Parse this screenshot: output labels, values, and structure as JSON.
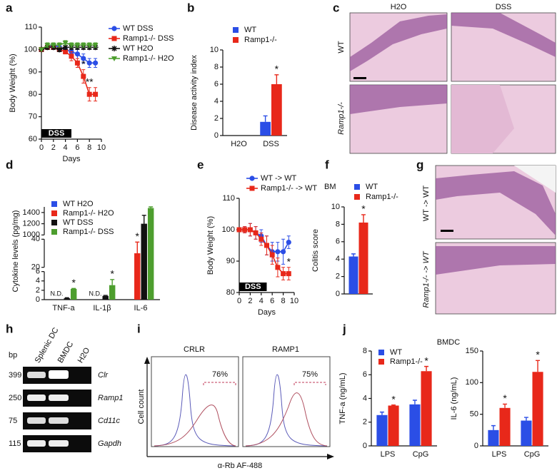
{
  "panels": [
    "a",
    "b",
    "c",
    "d",
    "e",
    "f",
    "g",
    "h",
    "i",
    "j"
  ],
  "chart_data": [
    {
      "type": "line",
      "ylabel": "Body Weight (%)",
      "xlabel": "Days",
      "x": [
        0,
        1,
        2,
        3,
        4,
        5,
        6,
        7,
        8,
        9
      ],
      "xlim": [
        0,
        10
      ],
      "xticks": [
        0,
        2,
        4,
        6,
        8,
        10
      ],
      "ylim": [
        60,
        110
      ],
      "yticks": [
        60,
        70,
        80,
        90,
        100,
        110
      ],
      "legend": "right",
      "dss_period": [
        0,
        5
      ],
      "dss_label": "DSS",
      "series": [
        {
          "name": "WT DSS",
          "color": "#2b4ee6",
          "marker": "circle",
          "values": [
            100,
            101,
            102,
            101,
            100,
            99,
            98,
            96,
            94,
            94
          ],
          "errors": [
            0,
            1,
            1,
            1,
            1,
            1,
            2,
            2,
            2,
            2
          ]
        },
        {
          "name": "Ramp1-/- DSS",
          "color": "#e8281a",
          "marker": "square",
          "values": [
            100,
            101,
            101,
            100,
            99,
            97,
            94,
            88,
            80,
            80
          ],
          "errors": [
            0,
            1,
            1,
            1,
            1,
            2,
            2,
            3,
            3,
            3
          ]
        },
        {
          "name": "WT H2O",
          "color": "#111111",
          "marker": "star",
          "values": [
            100,
            101,
            101,
            100,
            101,
            101,
            101,
            101,
            101,
            101
          ],
          "errors": [
            0,
            1,
            1,
            1,
            1,
            1,
            1,
            1,
            1,
            1
          ]
        },
        {
          "name": "Ramp1-/- H2O",
          "color": "#4d9e2e",
          "marker": "triangle",
          "values": [
            100,
            102,
            102,
            102,
            103,
            102,
            102,
            102,
            102,
            102
          ],
          "errors": [
            0,
            1,
            1,
            1,
            1,
            1,
            1,
            1,
            1,
            1
          ]
        }
      ],
      "annotations": [
        {
          "text": "*",
          "series": 1,
          "index": 7
        },
        {
          "text": "**",
          "series": 1,
          "index": 8
        }
      ]
    },
    {
      "type": "bar",
      "ylabel": "Disease activity index",
      "categories": [
        "H2O",
        "DSS"
      ],
      "ylim": [
        0,
        10
      ],
      "yticks": [
        0,
        2,
        4,
        6,
        8,
        10
      ],
      "legend": "top",
      "series": [
        {
          "name": "WT",
          "color": "#2b4ee6",
          "values": [
            0,
            1.6
          ],
          "errors": [
            null,
            0.7
          ]
        },
        {
          "name": "Ramp1-/-",
          "color": "#e8281a",
          "values": [
            0,
            6
          ],
          "errors": [
            null,
            1.1
          ]
        }
      ],
      "annotations": [
        {
          "text": "*",
          "category": 1,
          "series": 1
        }
      ]
    },
    {
      "type": "bar",
      "ylabel": "Cytokine levels (pg/mg)",
      "categories": [
        "TNF-a",
        "IL-1β",
        "IL-6"
      ],
      "ysegments": [
        [
          0,
          6
        ],
        [
          20,
          40
        ],
        [
          1000,
          1500
        ]
      ],
      "yticks": [
        0,
        2,
        4,
        6,
        20,
        40,
        1000,
        1200,
        1400
      ],
      "legend": "inside",
      "series": [
        {
          "name": "WT H2O",
          "color": "#2b4ee6",
          "values": [
            null,
            null,
            null
          ],
          "errors": [
            null,
            null,
            null
          ]
        },
        {
          "name": "Ramp1-/- H2O",
          "color": "#e8281a",
          "values": [
            null,
            null,
            30
          ],
          "errors": [
            null,
            null,
            8
          ]
        },
        {
          "name": "WT DSS",
          "color": "#111111",
          "values": [
            0.3,
            0.8,
            1200
          ],
          "errors": [
            0.1,
            0.1,
            150
          ]
        },
        {
          "name": "Ramp1-/- DSS",
          "color": "#4d9e2e",
          "values": [
            2.3,
            3.1,
            1480
          ],
          "errors": [
            0.1,
            1.2,
            60
          ]
        }
      ],
      "annotations": [
        {
          "text": "N.D.",
          "category": 0
        },
        {
          "text": "N.D.",
          "category": 1
        },
        {
          "text": "*",
          "category": 0,
          "series": 3
        },
        {
          "text": "*",
          "category": 1,
          "series": 3
        },
        {
          "text": "*",
          "category": 2,
          "series": 1
        }
      ]
    },
    {
      "type": "line",
      "ylabel": "Body Weight (%)",
      "xlabel": "Days",
      "x": [
        0,
        1,
        2,
        3,
        4,
        5,
        6,
        7,
        8,
        9
      ],
      "xlim": [
        0,
        10
      ],
      "xticks": [
        0,
        2,
        4,
        6,
        8,
        10
      ],
      "ylim": [
        80,
        110
      ],
      "yticks": [
        80,
        90,
        100,
        110
      ],
      "legend": "top",
      "dss_period": [
        0,
        5
      ],
      "dss_label": "DSS",
      "series": [
        {
          "name": "WT -> WT",
          "color": "#2b4ee6",
          "marker": "circle",
          "values": [
            100,
            100,
            100,
            99,
            98,
            95,
            93,
            93,
            93,
            96
          ],
          "errors": [
            0,
            1,
            2,
            2,
            2,
            3,
            3,
            3,
            4,
            2
          ]
        },
        {
          "name": "Ramp1-/- -> WT",
          "color": "#e8281a",
          "marker": "square",
          "values": [
            100,
            100,
            100,
            99,
            97,
            95,
            92,
            88,
            86,
            86
          ],
          "errors": [
            0,
            1,
            2,
            2,
            2,
            3,
            3,
            3,
            2,
            2
          ]
        }
      ],
      "annotations": [
        {
          "text": "*",
          "series": 1,
          "index": 9
        }
      ]
    },
    {
      "type": "bar",
      "title": "BM",
      "ylabel": "Colitis score",
      "categories": [
        null
      ],
      "ylim": [
        0,
        10
      ],
      "yticks": [
        0,
        2,
        4,
        6,
        8,
        10
      ],
      "legend": "top",
      "series": [
        {
          "name": "WT",
          "color": "#2b4ee6",
          "values": [
            4.3
          ],
          "errors": [
            0.3
          ]
        },
        {
          "name": "Ramp1-/-",
          "color": "#e8281a",
          "values": [
            8.2
          ],
          "errors": [
            0.9
          ]
        }
      ],
      "annotations": [
        {
          "text": "*",
          "category": 0,
          "series": 1
        }
      ]
    },
    {
      "type": "bar",
      "ylabel": "TNF-a (ng/mL)",
      "categories": [
        "LPS",
        "CpG"
      ],
      "ylim": [
        0,
        8
      ],
      "yticks": [
        0,
        2,
        4,
        6,
        8
      ],
      "legend": "inside",
      "series": [
        {
          "name": "WT",
          "color": "#2b4ee6",
          "values": [
            2.6,
            3.5
          ],
          "errors": [
            0.25,
            0.35
          ]
        },
        {
          "name": "Ramp1-/-",
          "color": "#e8281a",
          "values": [
            3.4,
            6.3
          ],
          "errors": [
            0.05,
            0.4
          ]
        }
      ],
      "annotations": [
        {
          "text": "*",
          "category": 0,
          "series": 1
        },
        {
          "text": "*",
          "category": 1,
          "series": 1
        }
      ]
    },
    {
      "type": "bar",
      "ylabel": "IL-6 (ng/mL)",
      "categories": [
        "LPS",
        "CpG"
      ],
      "ylim": [
        0,
        150
      ],
      "yticks": [
        0,
        50,
        100,
        150
      ],
      "series": [
        {
          "color": "#2b4ee6",
          "values": [
            25,
            40
          ],
          "errors": [
            7,
            5
          ]
        },
        {
          "color": "#e8281a",
          "values": [
            60,
            117
          ],
          "errors": [
            6,
            18
          ]
        }
      ],
      "annotations": [
        {
          "text": "*",
          "category": 0,
          "series": 1
        },
        {
          "text": "*",
          "category": 1,
          "series": 1
        }
      ]
    }
  ],
  "j_title": "BMDC",
  "histology_c": {
    "columns": [
      "H2O",
      "DSS"
    ],
    "rows": [
      "WT",
      "Ramp1-/-"
    ]
  },
  "histology_g": {
    "rows": [
      "WT -> WT",
      "Ramp1-/- -> WT"
    ]
  },
  "gel": {
    "unit": "bp",
    "lanes": [
      "Splenic DC",
      "BMDC",
      "H2O"
    ],
    "rows": [
      {
        "size": 399,
        "gene": "Clr"
      },
      {
        "size": 250,
        "gene": "Ramp1"
      },
      {
        "size": 75,
        "gene": "Cd11c"
      },
      {
        "size": 115,
        "gene": "Gapdh"
      }
    ]
  },
  "flow": {
    "panels": [
      {
        "title": "CRLR",
        "percent": "76%"
      },
      {
        "title": "RAMP1",
        "percent": "75%"
      }
    ],
    "ylabel": "Cell count",
    "xlabel": "α-Rb AF-488"
  }
}
